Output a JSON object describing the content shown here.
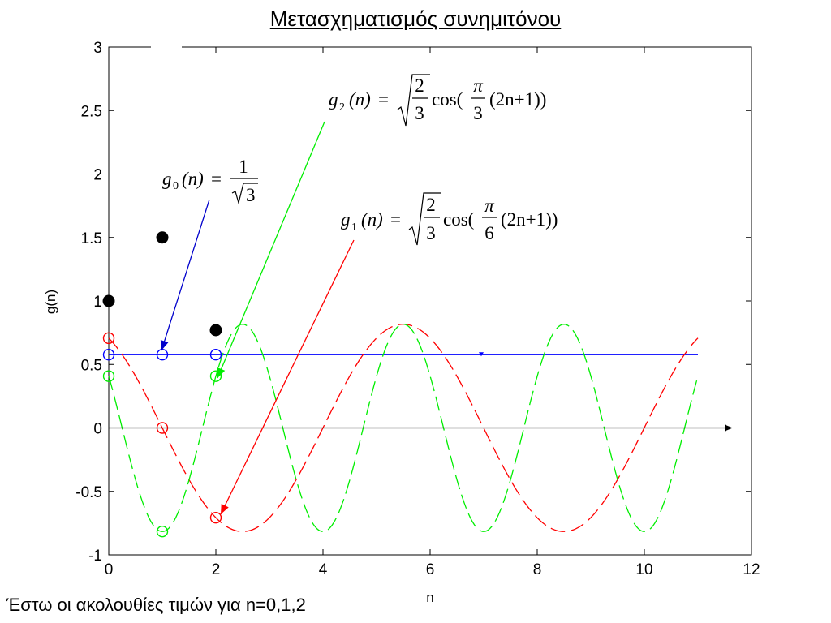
{
  "title": "Μετασχηματισμός συνημιτόνου",
  "caption": "Έστω οι ακολουθίες τιμών για n=0,1,2",
  "chart_data": {
    "type": "line",
    "xlabel": "n",
    "ylabel": "g(n)",
    "xlim": [
      0,
      12
    ],
    "ylim": [
      -1,
      3
    ],
    "xticks": [
      "0",
      "2",
      "4",
      "6",
      "8",
      "10",
      "12"
    ],
    "yticks": [
      "-1",
      "-0.5",
      "0",
      "0.5",
      "1",
      "1.5",
      "2",
      "2.5",
      "3"
    ],
    "series": [
      {
        "name": "g0",
        "color": "#0000ff",
        "style": "solid",
        "x": [
          0,
          11
        ],
        "y": [
          0.577,
          0.577
        ],
        "markers_x": [
          0,
          1,
          2
        ],
        "markers_y": [
          0.577,
          0.577,
          0.577
        ]
      },
      {
        "name": "g1",
        "color": "#ff0000",
        "style": "dashed",
        "formula_amplitude": 0.8165,
        "formula_omega_over_pi": 0.1667,
        "x_range": [
          0,
          11
        ],
        "markers_x": [
          0,
          1,
          2
        ],
        "markers_y": [
          0.707,
          0,
          -0.707
        ]
      },
      {
        "name": "g2",
        "color": "#00ee00",
        "style": "dashed",
        "formula_amplitude": 0.8165,
        "formula_omega_over_pi": 0.3333,
        "x_range": [
          0,
          11
        ],
        "markers_x": [
          0,
          1,
          2
        ],
        "markers_y": [
          0.408,
          -0.816,
          0.408
        ]
      }
    ],
    "black_points": [
      {
        "x": 0,
        "y": 1
      },
      {
        "x": 1,
        "y": 1.5
      },
      {
        "x": 2,
        "y": 0.77
      }
    ],
    "equations": {
      "g0": {
        "lhs_g": "g",
        "lhs_sub": "0",
        "lhs_n": "(n)",
        "eq": "=",
        "num": "1",
        "den": "3"
      },
      "g1": {
        "lhs_g": "g",
        "lhs_sub": "1",
        "lhs_n": "(n)",
        "eq": "=",
        "rnum": "2",
        "rden": "3",
        "cos": "cos(",
        "pnum": "π",
        "pden": "6",
        "tail": "(2n+1))"
      },
      "g2": {
        "lhs_g": "g",
        "lhs_sub": "2",
        "lhs_n": "(n)",
        "eq": "=",
        "rnum": "2",
        "rden": "3",
        "cos": "cos(",
        "pnum": "π",
        "pden": "3",
        "tail": "(2n+1))"
      }
    }
  }
}
